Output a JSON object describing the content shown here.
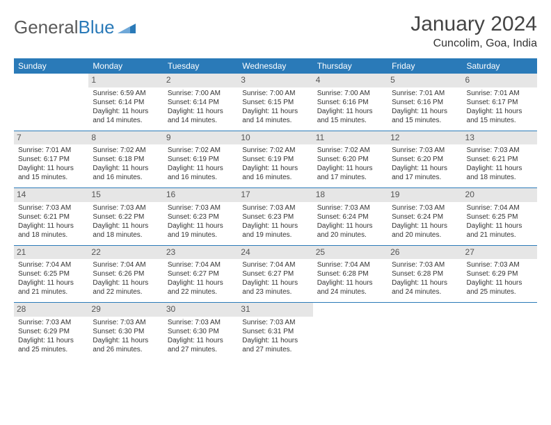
{
  "brand": {
    "part1": "General",
    "part2": "Blue"
  },
  "title": "January 2024",
  "location": "Cuncolim, Goa, India",
  "colors": {
    "header_bg": "#2a7ab8",
    "header_text": "#ffffff",
    "daynum_bg": "#e6e6e6",
    "daynum_text": "#555555",
    "border": "#2a7ab8",
    "body_text": "#333333",
    "logo_gray": "#5a5a5a",
    "logo_blue": "#2a7ab8",
    "background": "#ffffff"
  },
  "typography": {
    "title_fontsize": 30,
    "location_fontsize": 16,
    "logo_fontsize": 26,
    "dayheader_fontsize": 12,
    "daynum_fontsize": 12,
    "cell_fontsize": 10
  },
  "weekdays": [
    "Sunday",
    "Monday",
    "Tuesday",
    "Wednesday",
    "Thursday",
    "Friday",
    "Saturday"
  ],
  "weeks": [
    [
      null,
      {
        "d": "1",
        "sr": "6:59 AM",
        "ss": "6:14 PM",
        "dl": "11 hours and 14 minutes."
      },
      {
        "d": "2",
        "sr": "7:00 AM",
        "ss": "6:14 PM",
        "dl": "11 hours and 14 minutes."
      },
      {
        "d": "3",
        "sr": "7:00 AM",
        "ss": "6:15 PM",
        "dl": "11 hours and 14 minutes."
      },
      {
        "d": "4",
        "sr": "7:00 AM",
        "ss": "6:16 PM",
        "dl": "11 hours and 15 minutes."
      },
      {
        "d": "5",
        "sr": "7:01 AM",
        "ss": "6:16 PM",
        "dl": "11 hours and 15 minutes."
      },
      {
        "d": "6",
        "sr": "7:01 AM",
        "ss": "6:17 PM",
        "dl": "11 hours and 15 minutes."
      }
    ],
    [
      {
        "d": "7",
        "sr": "7:01 AM",
        "ss": "6:17 PM",
        "dl": "11 hours and 15 minutes."
      },
      {
        "d": "8",
        "sr": "7:02 AM",
        "ss": "6:18 PM",
        "dl": "11 hours and 16 minutes."
      },
      {
        "d": "9",
        "sr": "7:02 AM",
        "ss": "6:19 PM",
        "dl": "11 hours and 16 minutes."
      },
      {
        "d": "10",
        "sr": "7:02 AM",
        "ss": "6:19 PM",
        "dl": "11 hours and 16 minutes."
      },
      {
        "d": "11",
        "sr": "7:02 AM",
        "ss": "6:20 PM",
        "dl": "11 hours and 17 minutes."
      },
      {
        "d": "12",
        "sr": "7:03 AM",
        "ss": "6:20 PM",
        "dl": "11 hours and 17 minutes."
      },
      {
        "d": "13",
        "sr": "7:03 AM",
        "ss": "6:21 PM",
        "dl": "11 hours and 18 minutes."
      }
    ],
    [
      {
        "d": "14",
        "sr": "7:03 AM",
        "ss": "6:21 PM",
        "dl": "11 hours and 18 minutes."
      },
      {
        "d": "15",
        "sr": "7:03 AM",
        "ss": "6:22 PM",
        "dl": "11 hours and 18 minutes."
      },
      {
        "d": "16",
        "sr": "7:03 AM",
        "ss": "6:23 PM",
        "dl": "11 hours and 19 minutes."
      },
      {
        "d": "17",
        "sr": "7:03 AM",
        "ss": "6:23 PM",
        "dl": "11 hours and 19 minutes."
      },
      {
        "d": "18",
        "sr": "7:03 AM",
        "ss": "6:24 PM",
        "dl": "11 hours and 20 minutes."
      },
      {
        "d": "19",
        "sr": "7:03 AM",
        "ss": "6:24 PM",
        "dl": "11 hours and 20 minutes."
      },
      {
        "d": "20",
        "sr": "7:04 AM",
        "ss": "6:25 PM",
        "dl": "11 hours and 21 minutes."
      }
    ],
    [
      {
        "d": "21",
        "sr": "7:04 AM",
        "ss": "6:25 PM",
        "dl": "11 hours and 21 minutes."
      },
      {
        "d": "22",
        "sr": "7:04 AM",
        "ss": "6:26 PM",
        "dl": "11 hours and 22 minutes."
      },
      {
        "d": "23",
        "sr": "7:04 AM",
        "ss": "6:27 PM",
        "dl": "11 hours and 22 minutes."
      },
      {
        "d": "24",
        "sr": "7:04 AM",
        "ss": "6:27 PM",
        "dl": "11 hours and 23 minutes."
      },
      {
        "d": "25",
        "sr": "7:04 AM",
        "ss": "6:28 PM",
        "dl": "11 hours and 24 minutes."
      },
      {
        "d": "26",
        "sr": "7:03 AM",
        "ss": "6:28 PM",
        "dl": "11 hours and 24 minutes."
      },
      {
        "d": "27",
        "sr": "7:03 AM",
        "ss": "6:29 PM",
        "dl": "11 hours and 25 minutes."
      }
    ],
    [
      {
        "d": "28",
        "sr": "7:03 AM",
        "ss": "6:29 PM",
        "dl": "11 hours and 25 minutes."
      },
      {
        "d": "29",
        "sr": "7:03 AM",
        "ss": "6:30 PM",
        "dl": "11 hours and 26 minutes."
      },
      {
        "d": "30",
        "sr": "7:03 AM",
        "ss": "6:30 PM",
        "dl": "11 hours and 27 minutes."
      },
      {
        "d": "31",
        "sr": "7:03 AM",
        "ss": "6:31 PM",
        "dl": "11 hours and 27 minutes."
      },
      null,
      null,
      null
    ]
  ],
  "labels": {
    "sunrise": "Sunrise: ",
    "sunset": "Sunset: ",
    "daylight": "Daylight: "
  }
}
